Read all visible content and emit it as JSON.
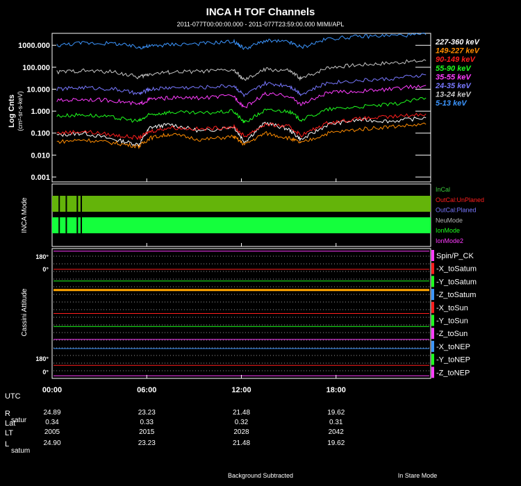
{
  "chart_data": [
    {
      "type": "line",
      "title": "INCA H TOF Channels",
      "subtitle": "2011-077T00:00:00.000 - 2011-077T23:59:00.000 MIMI/APL",
      "ylabel": "Log Cnts",
      "yunits": "(cm²-sr-s-keV)",
      "yscale": "log",
      "ylim": [
        0.0006,
        3500
      ],
      "yticks": [
        {
          "label": "1000.000",
          "value": 1000
        },
        {
          "label": "100.000",
          "value": 100
        },
        {
          "label": "10.000",
          "value": 10
        },
        {
          "label": "1.000",
          "value": 1
        },
        {
          "label": "0.100",
          "value": 0.1
        },
        {
          "label": "0.010",
          "value": 0.01
        },
        {
          "label": "0.001",
          "value": 0.001
        }
      ],
      "xlim_hours": [
        0,
        24
      ],
      "xticks": [
        {
          "label": "00:00",
          "hour": 0
        },
        {
          "label": "06:00",
          "hour": 6
        },
        {
          "label": "12:00",
          "hour": 12
        },
        {
          "label": "18:00",
          "hour": 18
        }
      ],
      "x": [
        0.3,
        2,
        4,
        5.5,
        6.2,
        7.5,
        9.5,
        11.5,
        12.2,
        13.5,
        15,
        15.8,
        17.5,
        19.5,
        21.5,
        23.7
      ],
      "series": [
        {
          "name": "227-360 keV",
          "color": "#ffffff",
          "values": [
            0.08,
            0.1,
            0.05,
            0.03,
            0.18,
            0.25,
            0.12,
            0.2,
            0.04,
            0.3,
            0.15,
            0.05,
            0.25,
            0.4,
            0.35,
            0.5
          ]
        },
        {
          "name": "149-227 keV",
          "color": "#ff8c00",
          "values": [
            0.04,
            0.05,
            0.035,
            0.025,
            0.06,
            0.09,
            0.05,
            0.07,
            0.03,
            0.1,
            0.06,
            0.035,
            0.1,
            0.15,
            0.2,
            0.25
          ]
        },
        {
          "name": "90-149 keV",
          "color": "#ff1e1e",
          "values": [
            0.1,
            0.12,
            0.08,
            0.06,
            0.12,
            0.18,
            0.15,
            0.2,
            0.07,
            0.25,
            0.2,
            0.08,
            0.3,
            0.45,
            0.55,
            0.75
          ]
        },
        {
          "name": "55-90 keV",
          "color": "#1eff1e",
          "values": [
            0.6,
            0.7,
            0.5,
            0.35,
            0.7,
            0.9,
            0.8,
            1,
            0.3,
            1.1,
            1,
            0.4,
            1.2,
            1.6,
            2,
            4
          ]
        },
        {
          "name": "35-55 keV",
          "color": "#ff3cff",
          "values": [
            3,
            3.5,
            3,
            2,
            3.5,
            4,
            4,
            5,
            1.5,
            6,
            5,
            2,
            7,
            8,
            10,
            15
          ]
        },
        {
          "name": "24-35 keV",
          "color": "#7878ff",
          "values": [
            10,
            12,
            10,
            6,
            10,
            12,
            12,
            15,
            5,
            18,
            15,
            6,
            20,
            25,
            30,
            45
          ]
        },
        {
          "name": "13-24 keV",
          "color": "#c8c8c8",
          "values": [
            60,
            70,
            60,
            35,
            50,
            60,
            65,
            75,
            25,
            80,
            70,
            30,
            100,
            130,
            160,
            200
          ]
        },
        {
          "name": "5-13 keV",
          "color": "#3c96ff",
          "values": [
            1000,
            1300,
            1200,
            800,
            900,
            1100,
            1200,
            1500,
            700,
            1600,
            1400,
            800,
            2000,
            2500,
            2800,
            3000
          ]
        }
      ]
    },
    {
      "type": "state",
      "ylabel": "INCA Mode",
      "legend": [
        {
          "label": "InCal",
          "color": "#3cc83c"
        },
        {
          "label": "OutCal:UnPlaned",
          "color": "#ff1e1e"
        },
        {
          "label": "OutCal:Planed",
          "color": "#7878ff"
        },
        {
          "label": "NeuMode",
          "color": "#b4b4b4"
        },
        {
          "label": "IonMode",
          "color": "#1eff1e"
        },
        {
          "label": "IonMode2",
          "color": "#ff3cff"
        }
      ],
      "bands": [
        {
          "name": "InCal",
          "start_hour": 0,
          "end_hour": 24,
          "color": "#64b40a"
        },
        {
          "name": "IonMode",
          "start_hour": 0,
          "end_hour": 24,
          "color": "#14ff3c"
        }
      ],
      "gaps_hours": [
        0.45,
        0.9,
        1.6,
        1.85
      ]
    },
    {
      "type": "line",
      "ylabel": "Cassini Attitude",
      "yticks": [
        {
          "label": "180°",
          "position": "top"
        },
        {
          "label": "0°",
          "position": "top"
        },
        {
          "label": "180°",
          "position": "bottom"
        },
        {
          "label": "0°",
          "position": "bottom"
        }
      ],
      "legend": [
        {
          "label": "Spin/P_CK",
          "color": "#ff3cff"
        },
        {
          "label": "-X_toSatum",
          "color": "#ff1e1e"
        },
        {
          "label": "-Y_toSatum",
          "color": "#1eff1e"
        },
        {
          "label": "-Z_toSatum",
          "color": "#3c96ff"
        },
        {
          "label": "-X_toSun",
          "color": "#ff1e1e"
        },
        {
          "label": "-Y_toSun",
          "color": "#1eff1e"
        },
        {
          "label": "-Z_toSun",
          "color": "#ff3cff"
        },
        {
          "label": "-X_toNEP",
          "color": "#3c96ff"
        },
        {
          "label": "-Y_toNEP",
          "color": "#1eff1e"
        },
        {
          "label": "-Z_toNEP",
          "color": "#ff3cff"
        }
      ],
      "series": [
        {
          "name": "Spin/P_CK",
          "color": "#ff3cff",
          "level": 0.02
        },
        {
          "name": "-X_toSatum",
          "color": "#ff1e1e",
          "level": 0.16
        },
        {
          "name": "-Y_toSatum",
          "color": "#1eff1e",
          "level": 0.25
        },
        {
          "name": "-Z_toSatum",
          "color": "#ffa500",
          "level": 0.32
        },
        {
          "name": "-X_toSun",
          "color": "#ff1e1e",
          "level": 0.5
        },
        {
          "name": "-Y_toSun",
          "color": "#1eff1e",
          "level": 0.6
        },
        {
          "name": "-Z_toSun",
          "color": "#ff3cff",
          "level": 0.7
        },
        {
          "name": "-X_toNEP",
          "color": "#3c96ff",
          "level": 0.77
        },
        {
          "name": "-Y_toNEP",
          "color": "#ff1e1e",
          "level": 0.9
        },
        {
          "name": "-Z_toNEP",
          "color": "#ff3cff",
          "level": 0.98
        }
      ]
    }
  ],
  "ephemeris": {
    "utc_label": "UTC",
    "rows": [
      {
        "label": "R",
        "sub": "satur",
        "values": [
          "24.89",
          "23.23",
          "21.48",
          "19.62"
        ]
      },
      {
        "label": "Lat",
        "sub": "",
        "values": [
          "0.34",
          "0.33",
          "0.32",
          "0.31"
        ]
      },
      {
        "label": "LT",
        "sub": "",
        "values": [
          "2005",
          "2015",
          "2028",
          "2042"
        ]
      },
      {
        "label": "L",
        "sub": "satum",
        "values": [
          "24.90",
          "23.23",
          "21.48",
          "19.62"
        ]
      }
    ]
  },
  "footer": {
    "left": "Background Subtracted",
    "right": "In Stare Mode"
  }
}
